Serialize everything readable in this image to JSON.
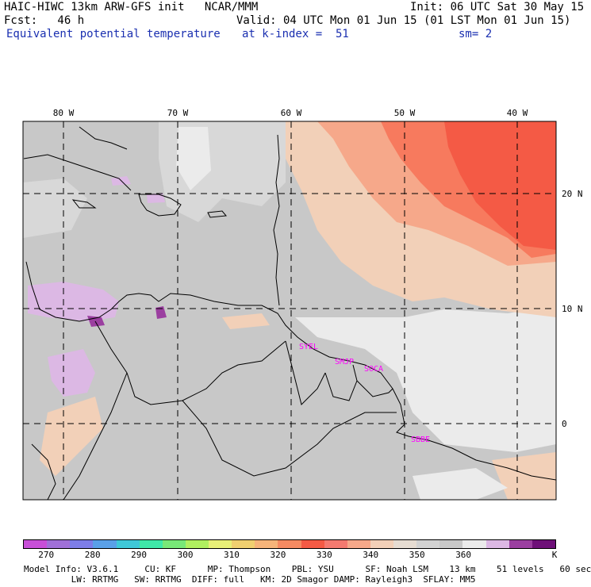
{
  "header": {
    "line1_left": "HAIC-HIWC 13km ARW-GFS init   NCAR/MMM",
    "line1_right": "Init: 06 UTC Sat 30 May 15",
    "line2_left": "Fcst:   46 h",
    "line2_right": "Valid: 04 UTC Mon 01 Jun 15 (01 LST Mon 01 Jun 15)",
    "line3_left": "Equivalent potential temperature",
    "line3_mid": "at k-index =  51",
    "line3_right": "sm= 2"
  },
  "map": {
    "lon_labels": [
      "80 W",
      "70 W",
      "60 W",
      "50 W",
      "40 W"
    ],
    "lat_labels": [
      "20 N",
      "10 N",
      "0"
    ],
    "stations": [
      "SYEL",
      "SMJP",
      "SOCA",
      "SBBE"
    ],
    "colors": {
      "grey": "#c8c8c8",
      "light": "#ebebeb",
      "peach": "#f2d0b8",
      "salmon": "#f6a88a",
      "coral": "#f77a5e",
      "red": "#f45a45",
      "lilac": "#dcb8e4",
      "purple": "#9b3fa0",
      "station": "#ff00ff"
    }
  },
  "colorbar": {
    "colors": [
      "#c84fd8",
      "#a070d8",
      "#7d7de8",
      "#5aa0e8",
      "#3fc8d8",
      "#3fe8a8",
      "#78e878",
      "#b0f060",
      "#e8f078",
      "#f0d070",
      "#f6b47a",
      "#f58a62",
      "#f45a45",
      "#f47a70",
      "#f6a88a",
      "#f2d0b8",
      "#e6dcd2",
      "#d2d2d2",
      "#c8c8c8",
      "#ebebeb",
      "#dcb8e4",
      "#9b3fa0",
      "#6e1078"
    ],
    "labels": [
      "270",
      "280",
      "290",
      "300",
      "310",
      "320",
      "330",
      "340",
      "350",
      "360",
      "K"
    ]
  },
  "footer": {
    "line1": "Model Info: V3.6.1     CU: KF      MP: Thompson    PBL: YSU      SF: Noah LSM    13 km    51 levels   60 sec",
    "line2": "         LW: RRTMG   SW: RRTMG  DIFF: full   KM: 2D Smagor DAMP: Rayleigh3  SFLAY: MM5"
  }
}
